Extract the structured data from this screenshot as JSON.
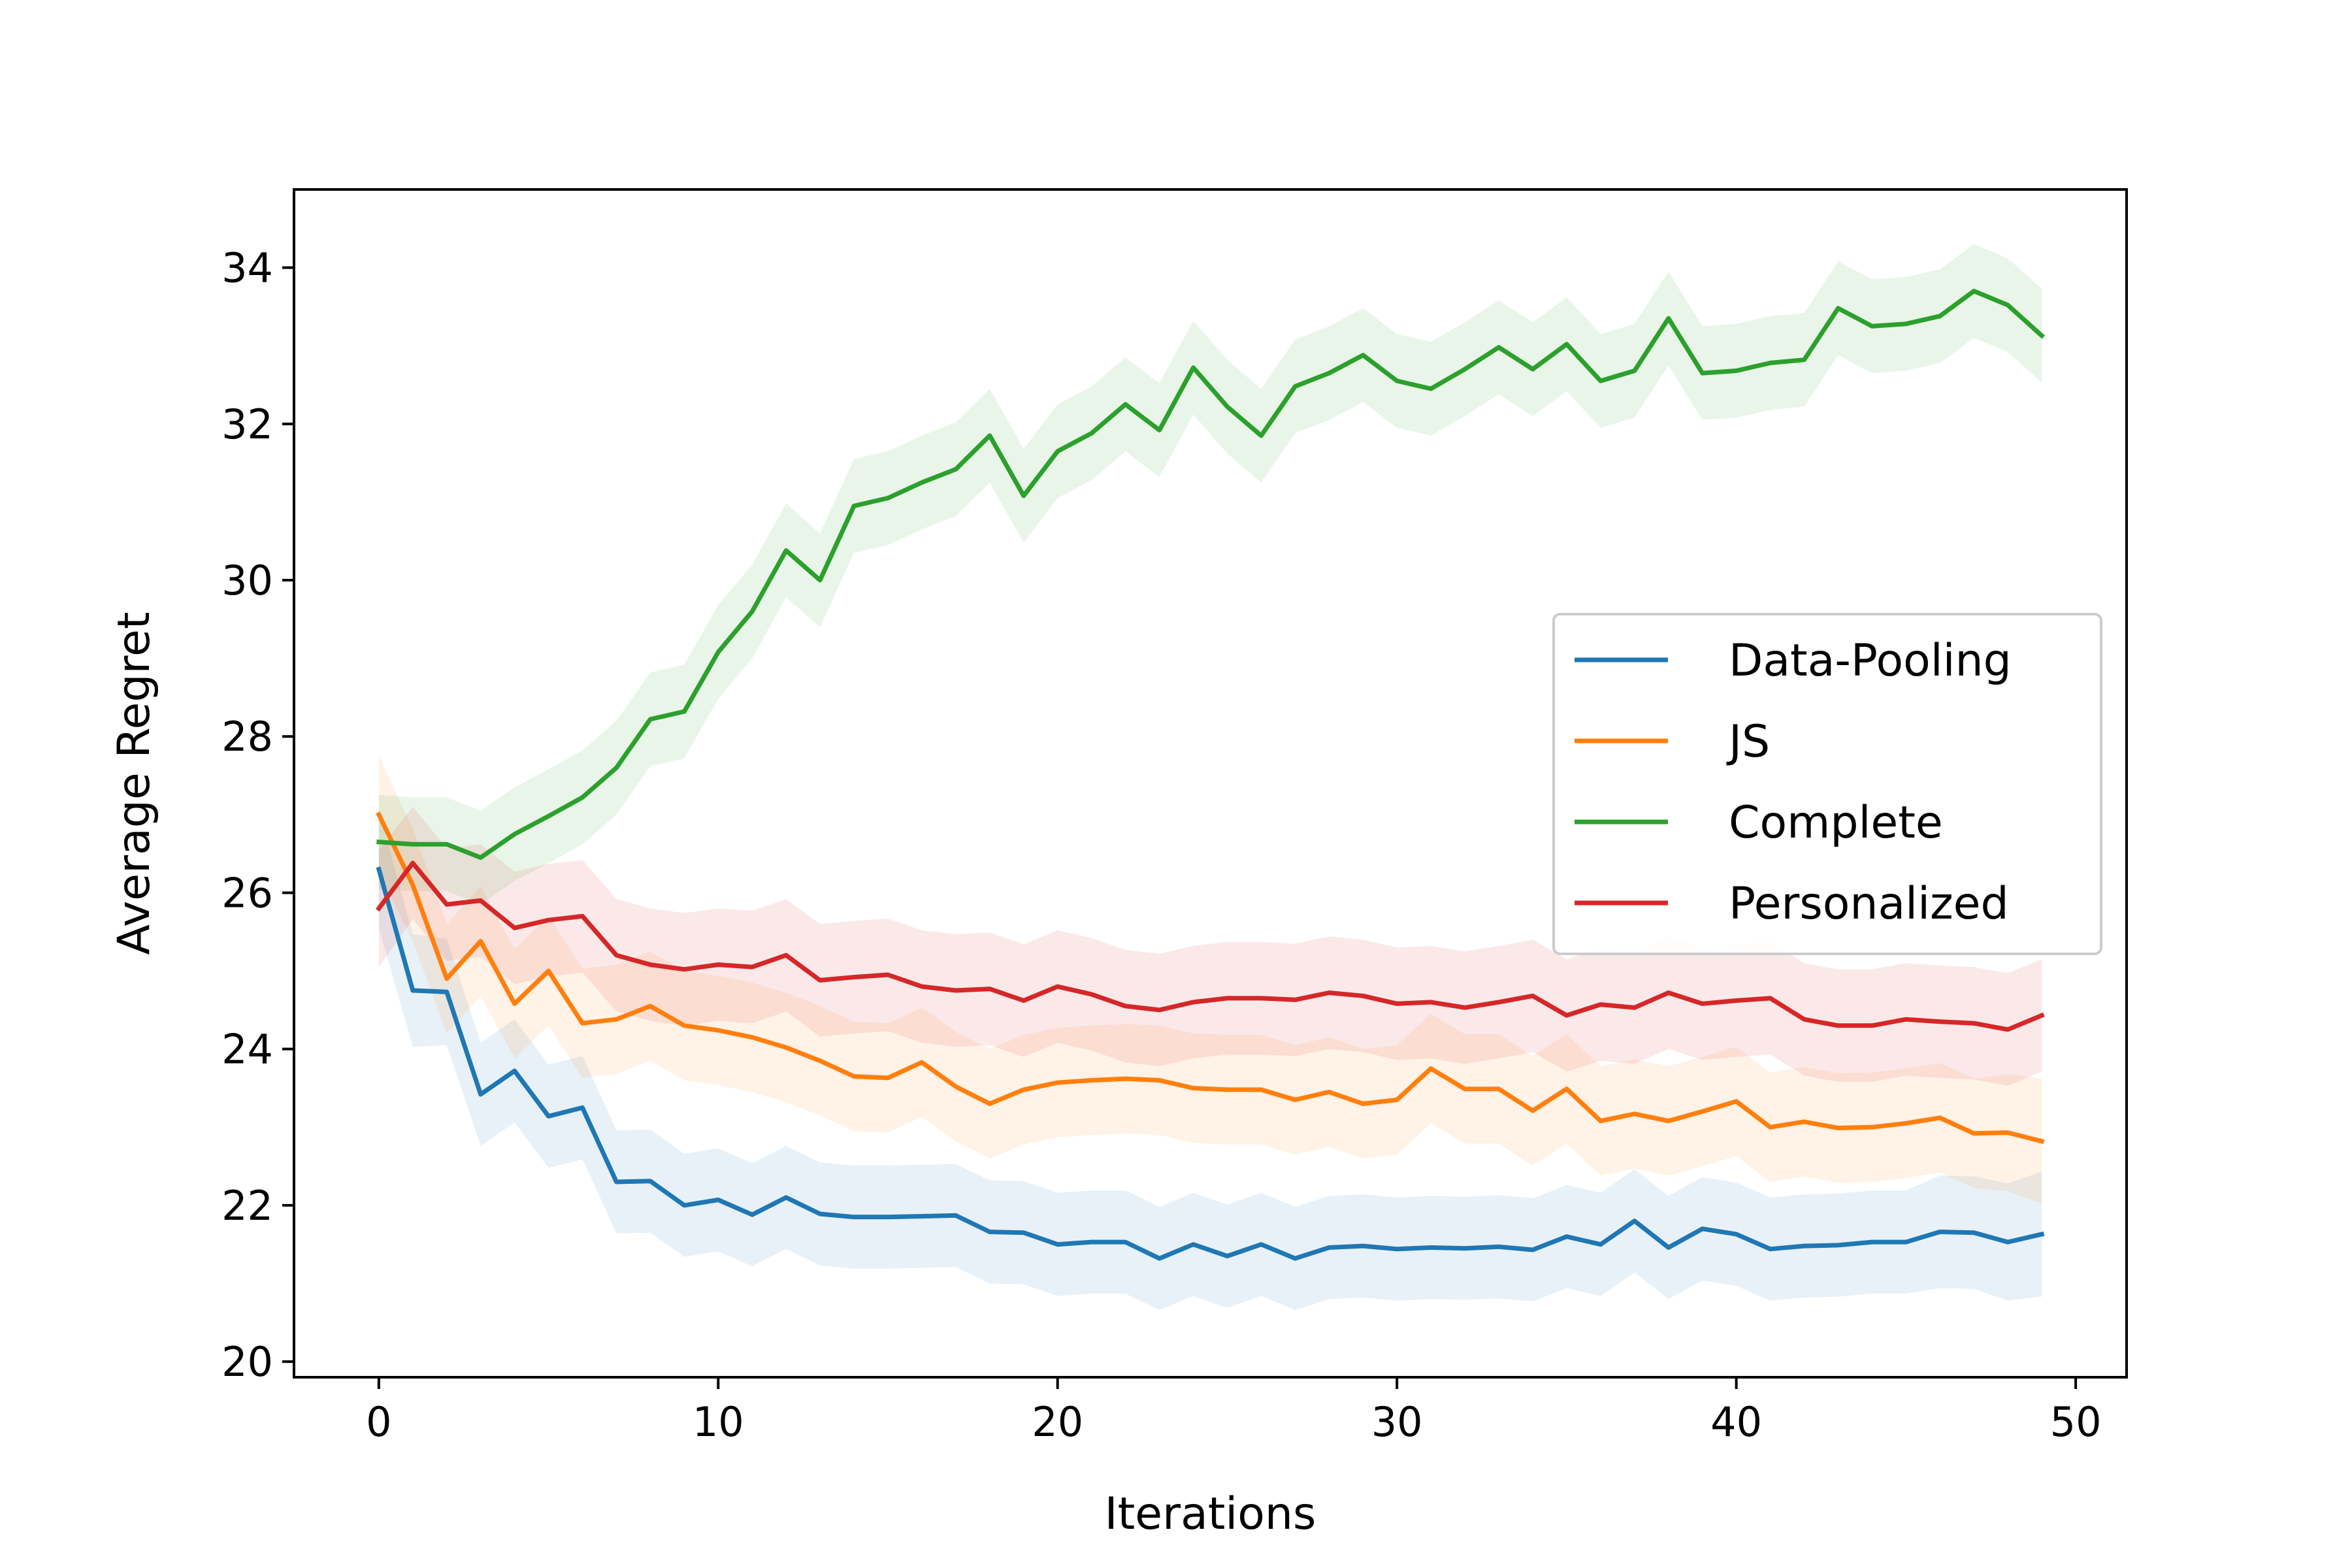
{
  "chart_data": {
    "type": "line",
    "xlabel": "Iterations",
    "ylabel": "Average Regret",
    "xlim": [
      -2.5,
      51.5
    ],
    "ylim": [
      19.8,
      35.0
    ],
    "xticks": [
      0,
      10,
      20,
      30,
      40,
      50
    ],
    "yticks": [
      20,
      22,
      24,
      26,
      28,
      30,
      32,
      34
    ],
    "grid": false,
    "legend_position": "center-right",
    "x": [
      0,
      1,
      2,
      3,
      4,
      5,
      6,
      7,
      8,
      9,
      10,
      11,
      12,
      13,
      14,
      15,
      16,
      17,
      18,
      19,
      20,
      21,
      22,
      23,
      24,
      25,
      26,
      27,
      28,
      29,
      30,
      31,
      32,
      33,
      34,
      35,
      36,
      37,
      38,
      39,
      40,
      41,
      42,
      43,
      44,
      45,
      46,
      47,
      48,
      49
    ],
    "series": [
      {
        "name": "Data-Pooling",
        "color": "#1f77b4",
        "values": [
          26.3,
          24.75,
          24.73,
          23.42,
          23.72,
          23.14,
          23.25,
          22.3,
          22.31,
          22.0,
          22.07,
          21.88,
          22.1,
          21.89,
          21.85,
          21.85,
          21.86,
          21.87,
          21.66,
          21.65,
          21.5,
          21.53,
          21.53,
          21.32,
          21.5,
          21.35,
          21.5,
          21.32,
          21.46,
          21.48,
          21.44,
          21.46,
          21.45,
          21.47,
          21.43,
          21.6,
          21.5,
          21.8,
          21.46,
          21.7,
          21.63,
          21.44,
          21.48,
          21.49,
          21.53,
          21.53,
          21.66,
          21.65,
          21.53,
          21.63
        ],
        "band": [
          0.75,
          0.72,
          0.68,
          0.66,
          0.66,
          0.66,
          0.66,
          0.66,
          0.66,
          0.66,
          0.66,
          0.66,
          0.66,
          0.66,
          0.66,
          0.66,
          0.66,
          0.66,
          0.66,
          0.66,
          0.66,
          0.66,
          0.66,
          0.66,
          0.66,
          0.66,
          0.66,
          0.66,
          0.66,
          0.66,
          0.66,
          0.66,
          0.66,
          0.66,
          0.66,
          0.66,
          0.66,
          0.66,
          0.66,
          0.66,
          0.66,
          0.66,
          0.66,
          0.66,
          0.66,
          0.66,
          0.72,
          0.72,
          0.75,
          0.8
        ]
      },
      {
        "name": "JS",
        "color": "#ff7f0e",
        "values": [
          27.0,
          26.1,
          24.9,
          25.38,
          24.58,
          25.0,
          24.33,
          24.38,
          24.55,
          24.3,
          24.24,
          24.15,
          24.02,
          23.85,
          23.65,
          23.63,
          23.83,
          23.52,
          23.3,
          23.48,
          23.57,
          23.6,
          23.62,
          23.6,
          23.5,
          23.48,
          23.48,
          23.35,
          23.45,
          23.3,
          23.35,
          23.75,
          23.49,
          23.49,
          23.21,
          23.49,
          23.08,
          23.17,
          23.08,
          23.2,
          23.33,
          23.0,
          23.07,
          22.99,
          23.0,
          23.05,
          23.12,
          22.92,
          22.93,
          22.82
        ],
        "band": [
          0.75,
          0.72,
          0.7,
          0.7,
          0.7,
          0.7,
          0.7,
          0.7,
          0.7,
          0.7,
          0.7,
          0.7,
          0.7,
          0.7,
          0.7,
          0.7,
          0.7,
          0.7,
          0.7,
          0.7,
          0.7,
          0.7,
          0.7,
          0.7,
          0.7,
          0.7,
          0.7,
          0.7,
          0.7,
          0.7,
          0.7,
          0.7,
          0.7,
          0.7,
          0.7,
          0.7,
          0.7,
          0.7,
          0.7,
          0.7,
          0.7,
          0.7,
          0.7,
          0.7,
          0.7,
          0.7,
          0.7,
          0.7,
          0.75,
          0.8
        ]
      },
      {
        "name": "Complete",
        "color": "#2ca02c",
        "values": [
          26.65,
          26.62,
          26.62,
          26.45,
          26.75,
          26.98,
          27.22,
          27.6,
          28.22,
          28.32,
          29.08,
          29.6,
          30.38,
          30.0,
          30.95,
          31.05,
          31.25,
          31.42,
          31.85,
          31.08,
          31.65,
          31.88,
          32.25,
          31.92,
          32.72,
          32.22,
          31.85,
          32.48,
          32.65,
          32.88,
          32.55,
          32.45,
          32.7,
          32.98,
          32.7,
          33.02,
          32.55,
          32.68,
          33.35,
          32.65,
          32.68,
          32.78,
          32.82,
          33.48,
          33.25,
          33.28,
          33.38,
          33.7,
          33.52,
          33.13
        ],
        "band": [
          0.6,
          0.6,
          0.6,
          0.6,
          0.6,
          0.6,
          0.6,
          0.6,
          0.6,
          0.6,
          0.6,
          0.6,
          0.6,
          0.6,
          0.6,
          0.6,
          0.6,
          0.6,
          0.6,
          0.6,
          0.6,
          0.6,
          0.6,
          0.6,
          0.6,
          0.6,
          0.6,
          0.6,
          0.6,
          0.6,
          0.6,
          0.6,
          0.6,
          0.6,
          0.6,
          0.6,
          0.6,
          0.6,
          0.6,
          0.6,
          0.6,
          0.6,
          0.6,
          0.6,
          0.6,
          0.6,
          0.6,
          0.6,
          0.6,
          0.6
        ]
      },
      {
        "name": "Personalized",
        "color": "#d62728",
        "values": [
          25.8,
          26.38,
          25.85,
          25.9,
          25.55,
          25.65,
          25.7,
          25.2,
          25.08,
          25.02,
          25.08,
          25.05,
          25.2,
          24.88,
          24.92,
          24.95,
          24.8,
          24.75,
          24.77,
          24.62,
          24.8,
          24.7,
          24.55,
          24.5,
          24.6,
          24.65,
          24.65,
          24.63,
          24.72,
          24.68,
          24.58,
          24.6,
          24.53,
          24.6,
          24.68,
          24.43,
          24.57,
          24.53,
          24.72,
          24.58,
          24.62,
          24.65,
          24.38,
          24.3,
          24.3,
          24.38,
          24.35,
          24.33,
          24.25,
          24.43
        ],
        "band": [
          0.75,
          0.72,
          0.72,
          0.72,
          0.72,
          0.72,
          0.72,
          0.72,
          0.72,
          0.72,
          0.72,
          0.72,
          0.72,
          0.72,
          0.72,
          0.72,
          0.72,
          0.72,
          0.72,
          0.72,
          0.72,
          0.72,
          0.72,
          0.72,
          0.72,
          0.72,
          0.72,
          0.72,
          0.72,
          0.72,
          0.72,
          0.72,
          0.72,
          0.72,
          0.72,
          0.72,
          0.72,
          0.72,
          0.72,
          0.72,
          0.72,
          0.72,
          0.72,
          0.72,
          0.72,
          0.72,
          0.72,
          0.72,
          0.72,
          0.72
        ]
      }
    ]
  }
}
